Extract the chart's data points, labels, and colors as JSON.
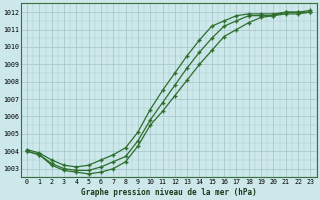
{
  "title": "Graphe pression niveau de la mer (hPa)",
  "bg_color": "#cce8ea",
  "grid_color": "#a8c8cc",
  "line_color": "#2d6e2d",
  "xlim": [
    -0.5,
    23.5
  ],
  "ylim": [
    1002.5,
    1012.5
  ],
  "yticks": [
    1003,
    1004,
    1005,
    1006,
    1007,
    1008,
    1009,
    1010,
    1011,
    1012
  ],
  "xticks": [
    0,
    1,
    2,
    3,
    4,
    5,
    6,
    7,
    8,
    9,
    10,
    11,
    12,
    13,
    14,
    15,
    16,
    17,
    18,
    19,
    20,
    21,
    22,
    23
  ],
  "series1": {
    "x": [
      0,
      1,
      2,
      3,
      4,
      5,
      6,
      7,
      8,
      9,
      10,
      11,
      12,
      13,
      14,
      15,
      16,
      17,
      18,
      19,
      20,
      21,
      22,
      23
    ],
    "y": [
      1004.1,
      1003.9,
      1003.5,
      1003.2,
      1003.1,
      1003.2,
      1003.5,
      1003.8,
      1004.2,
      1005.1,
      1006.4,
      1007.5,
      1008.5,
      1009.5,
      1010.4,
      1011.2,
      1011.5,
      1011.8,
      1011.9,
      1011.9,
      1011.9,
      1012.0,
      1012.0,
      1012.1
    ]
  },
  "series2": {
    "x": [
      0,
      1,
      2,
      3,
      4,
      5,
      6,
      7,
      8,
      9,
      10,
      11,
      12,
      13,
      14,
      15,
      16,
      17,
      18,
      19,
      20,
      21,
      22,
      23
    ],
    "y": [
      1004.0,
      1003.8,
      1003.3,
      1003.0,
      1002.9,
      1002.9,
      1003.1,
      1003.4,
      1003.7,
      1004.6,
      1005.8,
      1006.8,
      1007.8,
      1008.8,
      1009.7,
      1010.5,
      1011.2,
      1011.5,
      1011.8,
      1011.8,
      1011.8,
      1012.0,
      1012.0,
      1012.0
    ]
  },
  "series3": {
    "x": [
      0,
      1,
      2,
      3,
      4,
      5,
      6,
      7,
      8,
      9,
      10,
      11,
      12,
      13,
      14,
      15,
      16,
      17,
      18,
      19,
      20,
      21,
      22,
      23
    ],
    "y": [
      1004.0,
      1003.8,
      1003.2,
      1002.9,
      1002.8,
      1002.7,
      1002.8,
      1003.0,
      1003.4,
      1004.3,
      1005.5,
      1006.3,
      1007.2,
      1008.1,
      1009.0,
      1009.8,
      1010.6,
      1011.0,
      1011.4,
      1011.7,
      1011.8,
      1011.9,
      1011.9,
      1012.0
    ]
  }
}
